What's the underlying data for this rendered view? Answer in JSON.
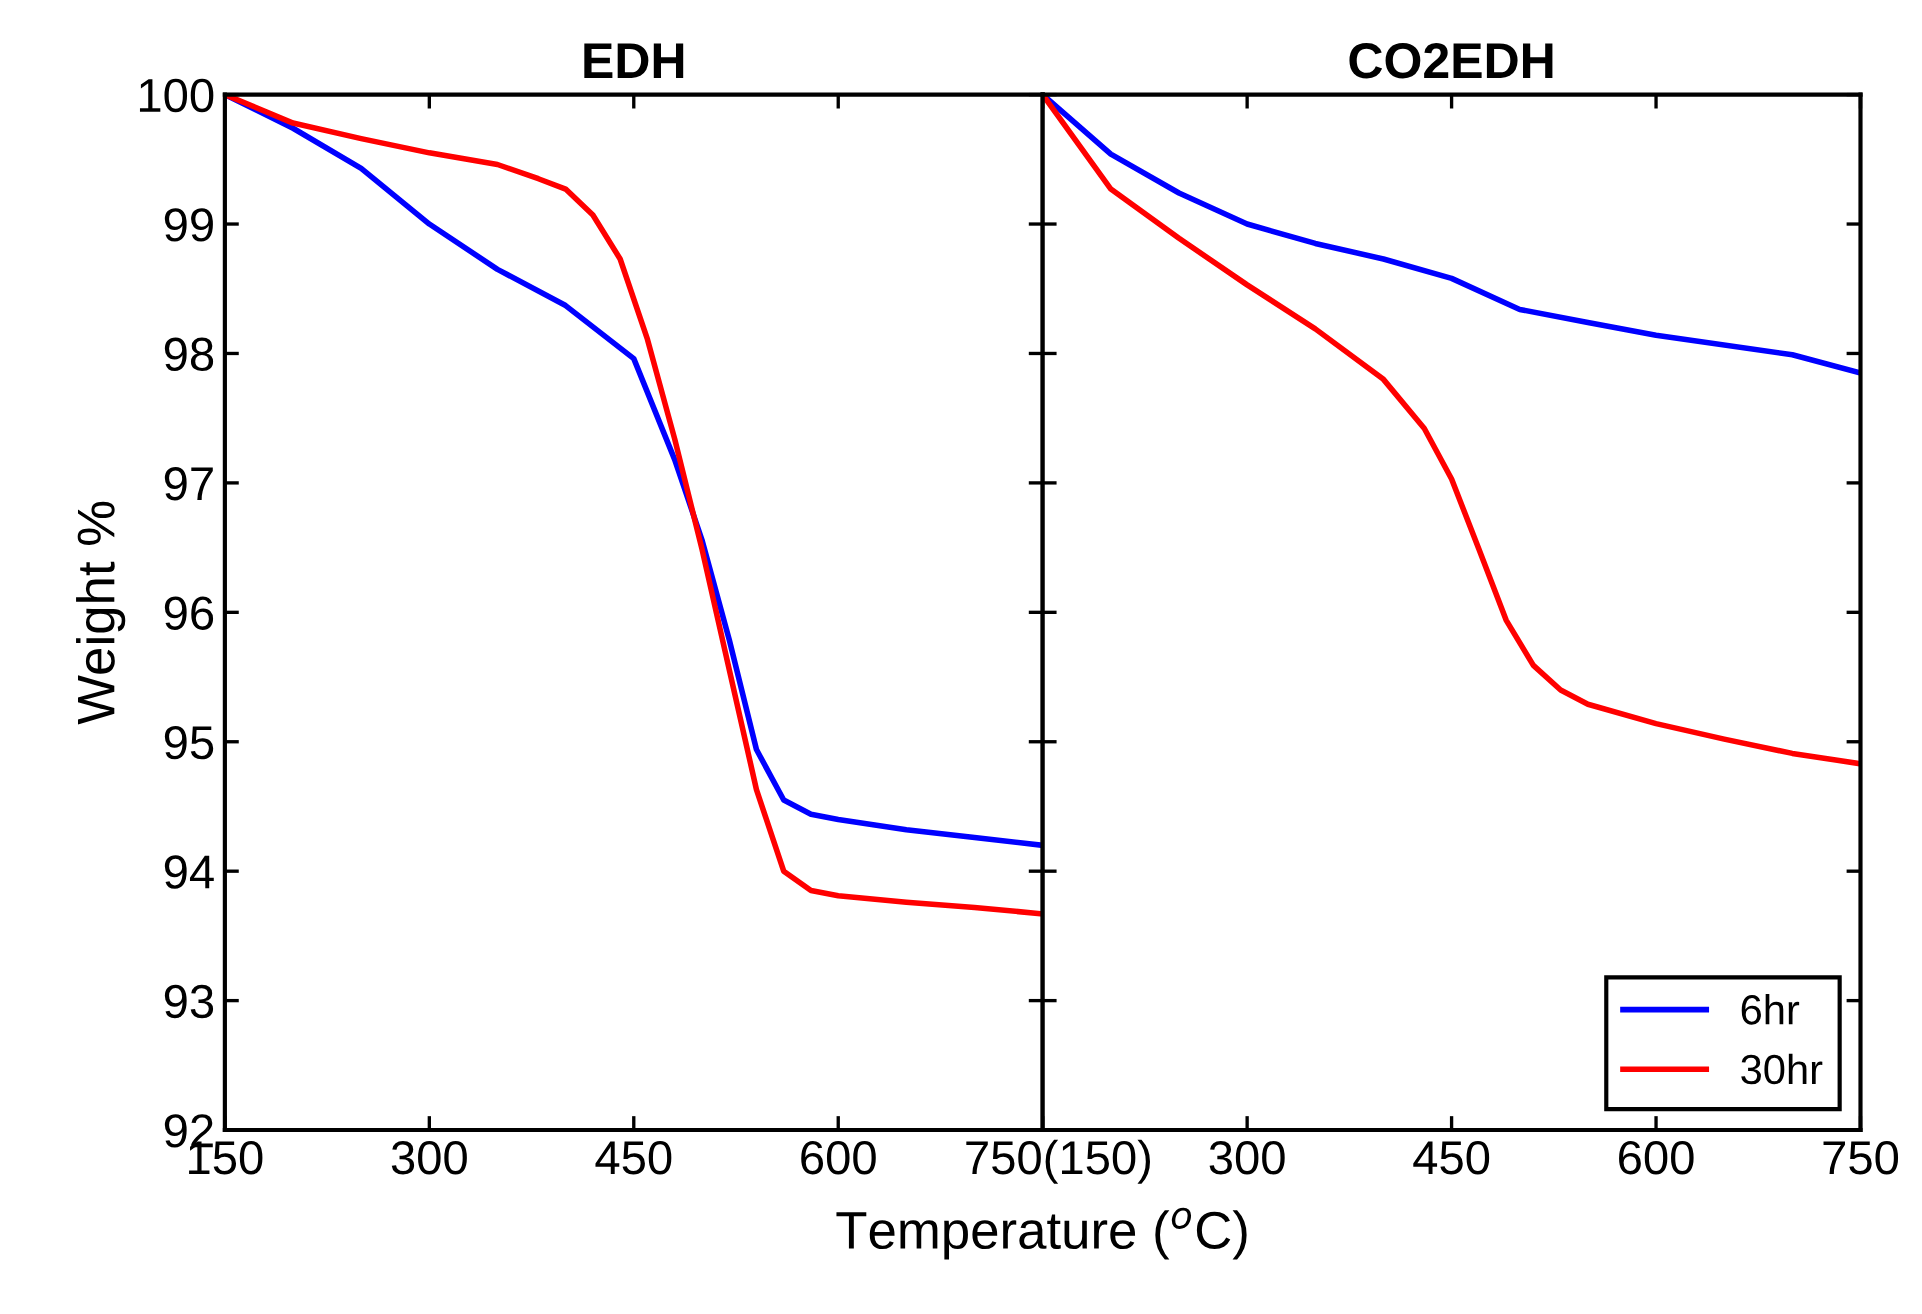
{
  "chart_data": [
    {
      "type": "line",
      "title": "EDH",
      "ylabel": "Weight %",
      "x": [
        150,
        200,
        250,
        300,
        350,
        380,
        400,
        420,
        440,
        450,
        460,
        480,
        500,
        520,
        540,
        560,
        580,
        600,
        650,
        700,
        750
      ],
      "series": [
        {
          "color": "#0000ff",
          "values": [
            100,
            99.74,
            99.43,
            99.0,
            98.65,
            null,
            98.37,
            null,
            null,
            97.96,
            null,
            97.18,
            96.56,
            95.79,
            94.94,
            94.55,
            94.44,
            94.4,
            94.32,
            94.26,
            94.2
          ]
        },
        {
          "color": "#ff0000",
          "values": [
            100,
            99.78,
            99.66,
            99.55,
            99.46,
            99.35,
            99.27,
            99.07,
            98.73,
            null,
            98.11,
            97.34,
            96.49,
            95.56,
            94.63,
            94.0,
            93.85,
            93.81,
            93.76,
            93.72,
            93.67
          ]
        }
      ],
      "xlim": [
        150,
        750
      ],
      "xticks": [
        150,
        300,
        450,
        600,
        750
      ],
      "ylim": [
        92,
        100
      ],
      "yticks": [
        92,
        93,
        94,
        95,
        96,
        97,
        98,
        99,
        100
      ],
      "grid": false,
      "legend": false
    },
    {
      "type": "line",
      "title": "CO2EDH",
      "xlabel": "Temperature ($^{o}$C)",
      "x": [
        150,
        200,
        250,
        300,
        350,
        400,
        430,
        450,
        470,
        490,
        500,
        510,
        530,
        550,
        600,
        650,
        700,
        750
      ],
      "series": [
        {
          "name": "6hr",
          "color": "#0000ff",
          "values": [
            100,
            99.54,
            99.24,
            99.0,
            98.85,
            98.73,
            null,
            98.58,
            null,
            null,
            98.34,
            null,
            null,
            98.24,
            98.14,
            null,
            97.99,
            97.85
          ]
        },
        {
          "name": "30hr",
          "color": "#ff0000",
          "values": [
            100,
            99.27,
            98.89,
            98.53,
            98.19,
            97.8,
            97.42,
            97.03,
            96.49,
            95.94,
            null,
            95.59,
            95.4,
            95.29,
            95.14,
            95.02,
            94.91,
            94.83
          ]
        }
      ],
      "xlim": [
        150,
        750
      ],
      "xticks": [
        {
          "value": 150,
          "label": "(150)"
        },
        300,
        450,
        600,
        750
      ],
      "ylim": [
        92,
        100
      ],
      "yticks": [
        92,
        93,
        94,
        95,
        96,
        97,
        98,
        99,
        100
      ],
      "tick_labels": "x",
      "grid": false,
      "legend": "bottom right"
    }
  ]
}
